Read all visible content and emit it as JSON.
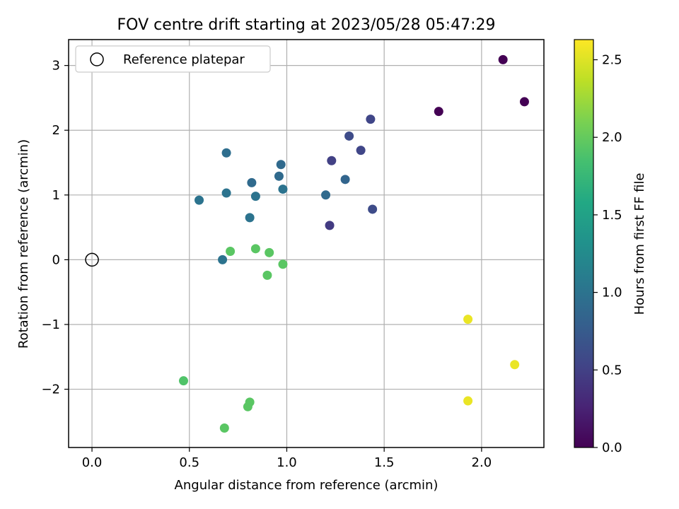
{
  "chart_data": {
    "type": "scatter",
    "title": "FOV centre drift starting at 2023/05/28 05:47:29",
    "xlabel": "Angular distance from reference (arcmin)",
    "ylabel": "Rotation from reference (arcmin)",
    "xlim": [
      -0.12,
      2.32
    ],
    "ylim": [
      -2.9,
      3.4
    ],
    "xticks": [
      0.0,
      0.5,
      1.0,
      1.5,
      2.0
    ],
    "xtick_labels": [
      "0.0",
      "0.5",
      "1.0",
      "1.5",
      "2.0"
    ],
    "yticks": [
      -2,
      -1,
      0,
      1,
      2,
      3
    ],
    "ytick_labels": [
      "−2",
      "−1",
      "0",
      "1",
      "2",
      "3"
    ],
    "grid": true,
    "legend": {
      "position": "upper-left",
      "entries": [
        {
          "label": "Reference platepar",
          "marker": "open-circle",
          "x": 0,
          "y": 0
        }
      ]
    },
    "colorbar": {
      "label": "Hours from first FF file",
      "colormap": "viridis",
      "range": [
        0.0,
        2.63
      ],
      "ticks": [
        0.0,
        0.5,
        1.0,
        1.5,
        2.0,
        2.5
      ],
      "tick_labels": [
        "0.0",
        "0.5",
        "1.0",
        "1.5",
        "2.0",
        "2.5"
      ]
    },
    "points": [
      {
        "x": 2.11,
        "y": 3.09,
        "c": 0.0
      },
      {
        "x": 2.22,
        "y": 2.44,
        "c": 0.0
      },
      {
        "x": 1.78,
        "y": 2.29,
        "c": 0.0
      },
      {
        "x": 1.43,
        "y": 2.17,
        "c": 0.55
      },
      {
        "x": 1.32,
        "y": 1.91,
        "c": 0.6
      },
      {
        "x": 1.38,
        "y": 1.69,
        "c": 0.55
      },
      {
        "x": 1.23,
        "y": 1.53,
        "c": 0.5
      },
      {
        "x": 1.3,
        "y": 1.24,
        "c": 0.85
      },
      {
        "x": 1.44,
        "y": 0.78,
        "c": 0.6
      },
      {
        "x": 1.22,
        "y": 0.53,
        "c": 0.45
      },
      {
        "x": 1.2,
        "y": 1.0,
        "c": 0.9
      },
      {
        "x": 0.97,
        "y": 1.47,
        "c": 0.9
      },
      {
        "x": 0.96,
        "y": 1.29,
        "c": 0.9
      },
      {
        "x": 0.98,
        "y": 1.09,
        "c": 1.0
      },
      {
        "x": 0.82,
        "y": 1.19,
        "c": 0.9
      },
      {
        "x": 0.84,
        "y": 0.98,
        "c": 1.0
      },
      {
        "x": 0.69,
        "y": 1.65,
        "c": 0.95
      },
      {
        "x": 0.69,
        "y": 1.03,
        "c": 1.0
      },
      {
        "x": 0.81,
        "y": 0.65,
        "c": 1.0
      },
      {
        "x": 0.55,
        "y": 0.92,
        "c": 1.0
      },
      {
        "x": 0.67,
        "y": 0.0,
        "c": 1.0
      },
      {
        "x": 0.71,
        "y": 0.13,
        "c": 1.95
      },
      {
        "x": 0.84,
        "y": 0.17,
        "c": 1.95
      },
      {
        "x": 0.91,
        "y": 0.11,
        "c": 1.95
      },
      {
        "x": 0.98,
        "y": -0.07,
        "c": 1.95
      },
      {
        "x": 0.9,
        "y": -0.24,
        "c": 1.95
      },
      {
        "x": 0.47,
        "y": -1.87,
        "c": 1.9
      },
      {
        "x": 0.81,
        "y": -2.2,
        "c": 1.95
      },
      {
        "x": 0.8,
        "y": -2.27,
        "c": 1.95
      },
      {
        "x": 0.68,
        "y": -2.6,
        "c": 1.95
      },
      {
        "x": 1.93,
        "y": -0.92,
        "c": 2.55
      },
      {
        "x": 2.17,
        "y": -1.62,
        "c": 2.55
      },
      {
        "x": 1.93,
        "y": -2.18,
        "c": 2.55
      }
    ]
  }
}
